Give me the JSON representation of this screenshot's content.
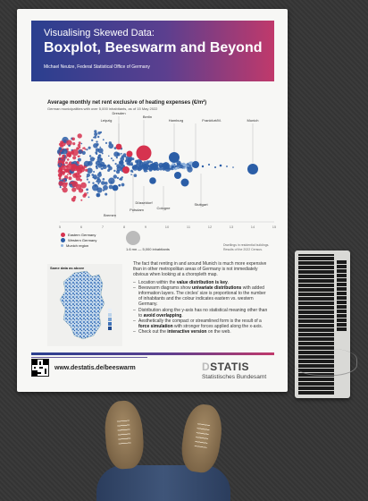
{
  "banner": {
    "pretitle": "Visualising Skewed Data:",
    "title": "Boxplot, Beeswarm and Beyond",
    "author": "Michael Neutze, Federal Statistical Office of Germany"
  },
  "chart": {
    "title": "Average monthly net rent exclusive of heating expenses (€/m²)",
    "subtitle": "German municipalities with over 5,000 inhabitants, as of 15 May 2022",
    "city_labels": [
      "Dresden",
      "Berlin",
      "Leipzig",
      "Hamburg",
      "Frankfurt/M.",
      "Munich",
      "Düsseldorf",
      "Potsdam",
      "Cologne",
      "Stuttgart",
      "Bremen"
    ],
    "ticks": [
      "5",
      "6",
      "7",
      "8",
      "9",
      "10",
      "11",
      "12",
      "13",
      "14",
      "15"
    ],
    "legend": [
      "Eastern Germany",
      "Western Germany",
      "Munich region"
    ],
    "size_legend": "1.6 mn  —  5,000 inhabitants",
    "source": "Dwellings in residential buildings. Results of the 2022 Census."
  },
  "map": {
    "label": "Same data as above"
  },
  "text": {
    "intro_a": "The fact that renting in and around Munich is much more expensive than in other metropolitan areas of Germany is not immediately obvious when looking at a choropleth map.",
    "b1_a": "Location within the ",
    "b1_b": "value distribution is key",
    "b2_a": "Beeswarm diagrams show ",
    "b2_b": "univariate distributions",
    "b2_c": " with added information layers. The circles' size is proportional to the number of inhabitants and the colour indicates eastern vs. western Germany.",
    "b3_a": "Distribution along the y-axis has no statistical meaning other than to ",
    "b3_b": "avoid overlapping",
    "b4_a": "Aesthetically the compact or streamlined form is the result of a ",
    "b4_b": "force simulation",
    "b4_c": " with stronger forces applied along the x-axis.",
    "b5_a": "Check out the ",
    "b5_b": "interactive version",
    "b5_c": " on the web."
  },
  "footer": {
    "url": "www.destatis.de/beeswarm",
    "logo_a": "D",
    "logo_b": "STATIS",
    "logo_sub": "Statistisches Bundesamt"
  },
  "colors": {
    "east": "#d6334f",
    "west": "#2b5ea7",
    "munich": "#8fb3dd"
  }
}
